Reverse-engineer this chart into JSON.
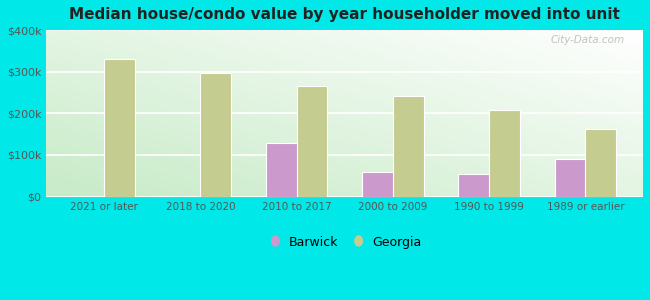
{
  "title": "Median house/condo value by year householder moved into unit",
  "categories": [
    "2021 or later",
    "2018 to 2020",
    "2010 to 2017",
    "2000 to 2009",
    "1990 to 1999",
    "1989 or earlier"
  ],
  "barwick_values": [
    null,
    null,
    128000,
    60000,
    53000,
    90000
  ],
  "georgia_values": [
    330000,
    298000,
    265000,
    242000,
    207000,
    163000
  ],
  "barwick_color": "#cc99cc",
  "georgia_color": "#c5cc90",
  "background_outer": "#00e8e8",
  "background_inner_topleft": "#f0fff0",
  "background_inner_topright": "#ffffff",
  "background_inner_bottom": "#c8e8c8",
  "grid_color": "#ffffff",
  "tick_label_color": "#555555",
  "title_color": "#222222",
  "ylim": [
    0,
    400000
  ],
  "yticks": [
    0,
    100000,
    200000,
    300000,
    400000
  ],
  "bar_width": 0.32,
  "watermark_text": "City-Data.com",
  "legend_barwick": "Barwick",
  "legend_georgia": "Georgia"
}
